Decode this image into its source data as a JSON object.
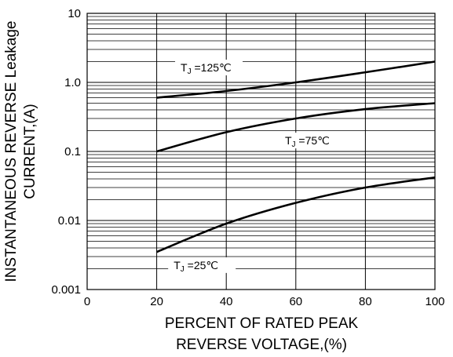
{
  "chart_data": {
    "type": "line",
    "title": "",
    "xlabel": [
      "PERCENT OF RATED PEAK",
      "REVERSE VOLTAGE,(%)"
    ],
    "ylabel": [
      "INSTANTANEOUS REVERSE Leakage",
      "CURRENT,(A)"
    ],
    "xlim": [
      0,
      100
    ],
    "ylim": [
      0.001,
      10
    ],
    "yscale": "log",
    "grid": true,
    "x_ticks": [
      "0",
      "20",
      "40",
      "60",
      "80",
      "100"
    ],
    "y_ticks": [
      "0.001",
      "0.01",
      "0.1",
      "1.0",
      "10"
    ],
    "series": [
      {
        "name": "TJ=125℃",
        "label_parts": [
          "T",
          "J",
          " =125℃"
        ],
        "x": [
          20,
          40,
          60,
          80,
          100
        ],
        "y": [
          0.6,
          0.75,
          1.0,
          1.4,
          2.0
        ]
      },
      {
        "name": "TJ=75℃",
        "label_parts": [
          "T",
          "J",
          " =75℃"
        ],
        "x": [
          20,
          40,
          60,
          80,
          100
        ],
        "y": [
          0.1,
          0.19,
          0.3,
          0.41,
          0.5
        ]
      },
      {
        "name": "TJ=25℃",
        "label_parts": [
          "T",
          "J",
          " =25℃"
        ],
        "x": [
          20,
          40,
          60,
          80,
          100
        ],
        "y": [
          0.0035,
          0.009,
          0.018,
          0.03,
          0.042
        ]
      }
    ]
  }
}
